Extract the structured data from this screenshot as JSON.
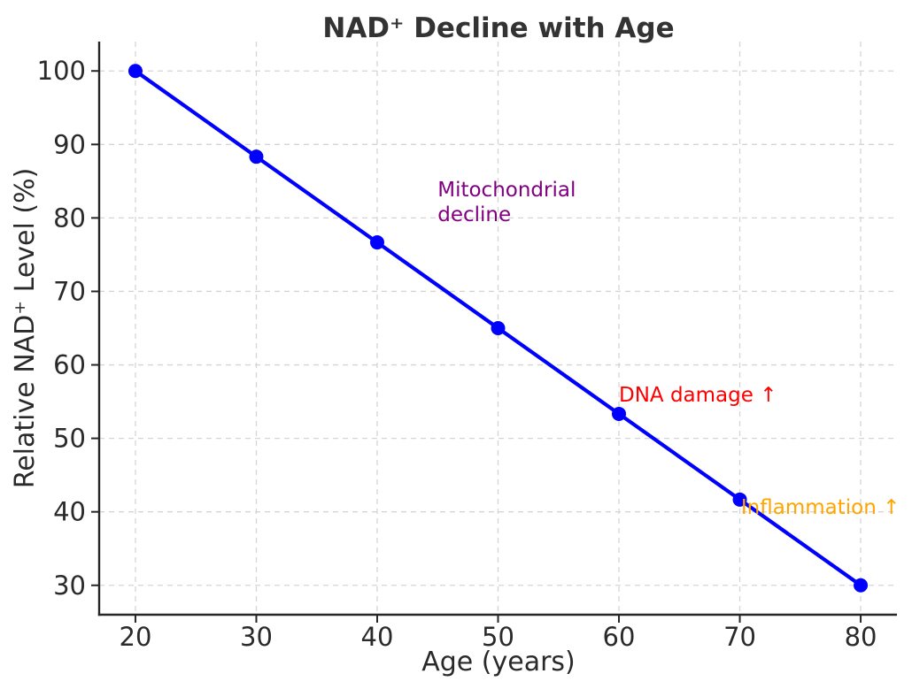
{
  "chart_data": {
    "type": "line",
    "title": "NAD⁺ Decline with Age",
    "xlabel": "Age (years)",
    "ylabel": "Relative NAD⁺ Level (%)",
    "x": [
      20,
      30,
      40,
      50,
      60,
      70,
      80
    ],
    "series": [
      {
        "name": "Relative NAD+ level",
        "values": [
          100,
          88.33,
          76.67,
          65,
          53.33,
          41.67,
          30
        ],
        "color": "#0000ff",
        "line_width": 4.2,
        "marker": "circle",
        "marker_radius": 8
      }
    ],
    "xlim": [
      17,
      83
    ],
    "ylim": [
      26,
      104
    ],
    "xticks": [
      20,
      30,
      40,
      50,
      60,
      70,
      80
    ],
    "yticks": [
      30,
      40,
      50,
      60,
      70,
      80,
      90,
      100
    ],
    "grid": true,
    "grid_style": "dashed",
    "legend": "none",
    "annotations": [
      {
        "text": "Mitochondrial\ndecline",
        "x": 45,
        "y": 85.5,
        "color": "#800080"
      },
      {
        "text": "DNA damage ↑",
        "x": 60,
        "y": 57.5,
        "color": "#ff0000"
      },
      {
        "text": "Inflammation ↑",
        "x": 70.1,
        "y": 42.2,
        "color": "#ffa500"
      }
    ],
    "colors": {
      "line": "#0000ff",
      "grid": "#d5d5d5",
      "axis": "#262626",
      "tick_text": "#2a2a2a",
      "title_text": "#333333",
      "background": "#ffffff"
    }
  }
}
